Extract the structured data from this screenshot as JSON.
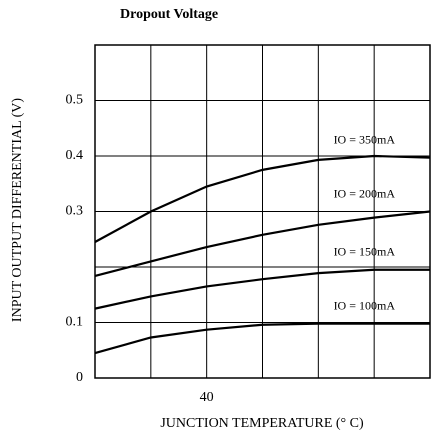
{
  "chart_data": {
    "type": "line",
    "title": "Dropout Voltage",
    "xlabel": "JUNCTION TEMPERATURE (° C)",
    "ylabel": "INPUT OUTPUT DIFFERENTIAL (V)",
    "x": [
      0,
      20,
      40,
      60,
      80,
      100,
      120
    ],
    "series": [
      {
        "name": "IO = 350mA",
        "color": "#000000",
        "values": [
          0.245,
          0.3,
          0.345,
          0.375,
          0.393,
          0.4,
          0.397
        ]
      },
      {
        "name": "IO = 200mA",
        "color": "#000000",
        "values": [
          0.184,
          0.21,
          0.236,
          0.258,
          0.276,
          0.289,
          0.3
        ]
      },
      {
        "name": "IO = 150mA",
        "color": "#000000",
        "values": [
          0.125,
          0.147,
          0.165,
          0.178,
          0.189,
          0.195,
          0.195
        ]
      },
      {
        "name": "IO = 100mA",
        "color": "#000000",
        "values": [
          0.045,
          0.073,
          0.087,
          0.096,
          0.098,
          0.098,
          0.098
        ]
      }
    ],
    "xlim": [
      0,
      120
    ],
    "ylim": [
      0,
      0.6
    ],
    "xticks": [
      40
    ],
    "yticks": [
      0,
      0.1,
      0.3,
      0.4,
      0.5
    ],
    "xgrid": [
      20,
      40,
      60,
      80,
      100
    ],
    "ygrid": [
      0.1,
      0.2,
      0.3,
      0.4,
      0.5
    ],
    "grid": true
  }
}
